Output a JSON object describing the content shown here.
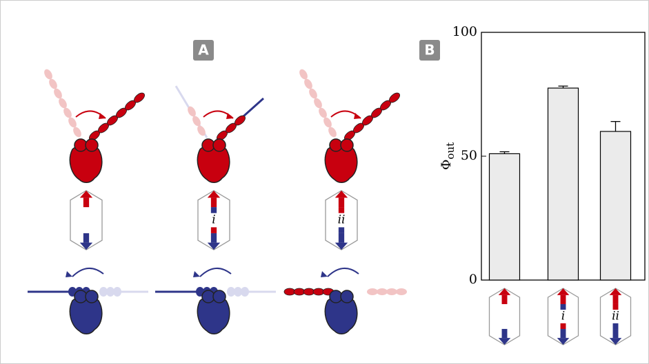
{
  "panels": {
    "a": {
      "label": "A",
      "hexagon_labels": [
        "i",
        "ii"
      ]
    },
    "b": {
      "label": "B"
    }
  },
  "chart_data": {
    "type": "bar",
    "ylabel": "Φ",
    "ylabel_subscript": "out",
    "categories": [
      null,
      "i",
      "ii"
    ],
    "values": [
      51,
      77.5,
      60
    ],
    "errors": [
      0.8,
      0.8,
      4
    ],
    "color": "#ebebeb",
    "ylim": [
      0,
      100
    ],
    "yticks": [
      0,
      50,
      100
    ]
  }
}
